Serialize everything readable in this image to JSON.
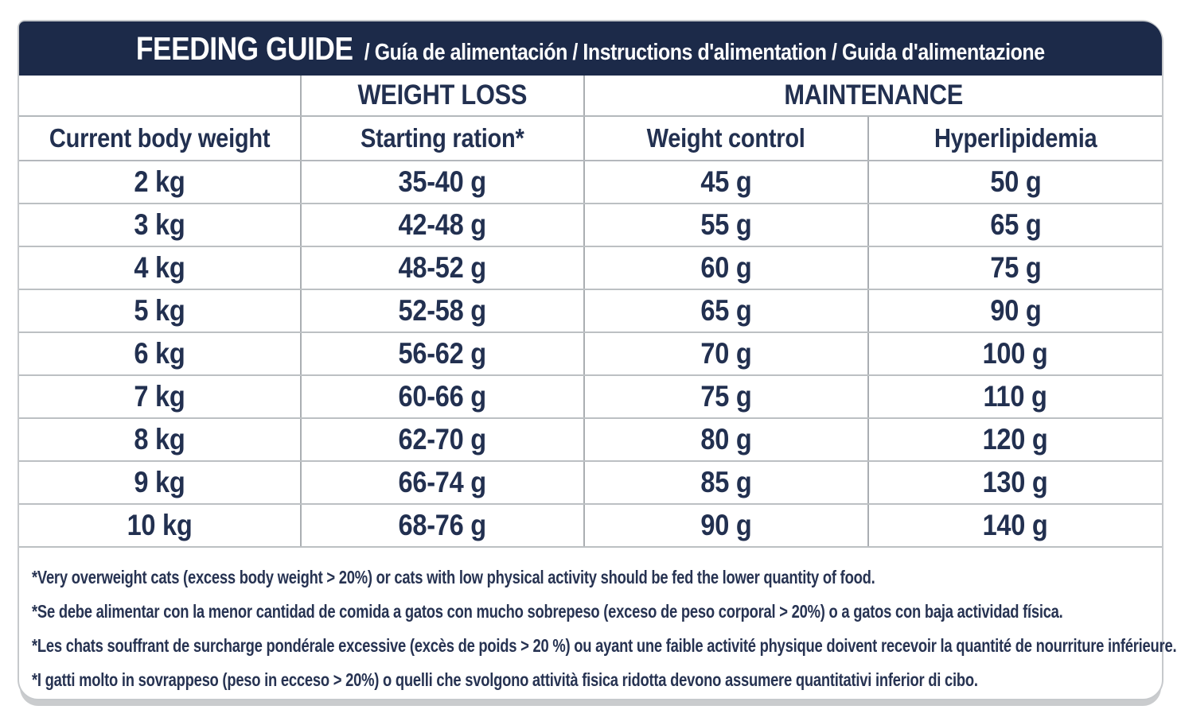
{
  "colors": {
    "header_bg": "#1c2a49",
    "text_navy": "#223050",
    "grid_line": "#b4b8bc",
    "card_border": "#c6c9cc",
    "card_bg": "#ffffff"
  },
  "header": {
    "title": "FEEDING GUIDE",
    "subtitle": "/ Guía de alimentación / Instructions d'alimentation / Guida d'alimentazione"
  },
  "table": {
    "group_headers": {
      "weight_loss": "WEIGHT LOSS",
      "maintenance": "MAINTENANCE"
    },
    "columns": [
      "Current body weight",
      "Starting ration*",
      "Weight control",
      "Hyperlipidemia"
    ],
    "rows": [
      [
        "2 kg",
        "35-40 g",
        "45 g",
        "50 g"
      ],
      [
        "3 kg",
        "42-48 g",
        "55 g",
        "65 g"
      ],
      [
        "4 kg",
        "48-52 g",
        "60 g",
        "75 g"
      ],
      [
        "5 kg",
        "52-58 g",
        "65 g",
        "90 g"
      ],
      [
        "6 kg",
        "56-62 g",
        "70 g",
        "100 g"
      ],
      [
        "7 kg",
        "60-66 g",
        "75 g",
        "110 g"
      ],
      [
        "8 kg",
        "62-70 g",
        "80 g",
        "120 g"
      ],
      [
        "9 kg",
        "66-74 g",
        "85 g",
        "130 g"
      ],
      [
        "10 kg",
        "68-76 g",
        "90 g",
        "140 g"
      ]
    ]
  },
  "footnotes": [
    "*Very overweight cats (excess body weight > 20%) or cats with low physical activity should be fed the lower quantity of food.",
    "*Se debe alimentar con la menor cantidad de comida a gatos con mucho sobrepeso (exceso de peso corporal > 20%) o a gatos con baja actividad física.",
    "*Les chats souffrant de surcharge pondérale excessive (excès de poids > 20 %) ou ayant une faible activité physique doivent recevoir la quantité de nourriture inférieure.",
    "*I gatti molto in sovrappeso (peso in ecceso > 20%) o quelli che svolgono attività fisica ridotta devono assumere quantitativi inferior di cibo."
  ]
}
